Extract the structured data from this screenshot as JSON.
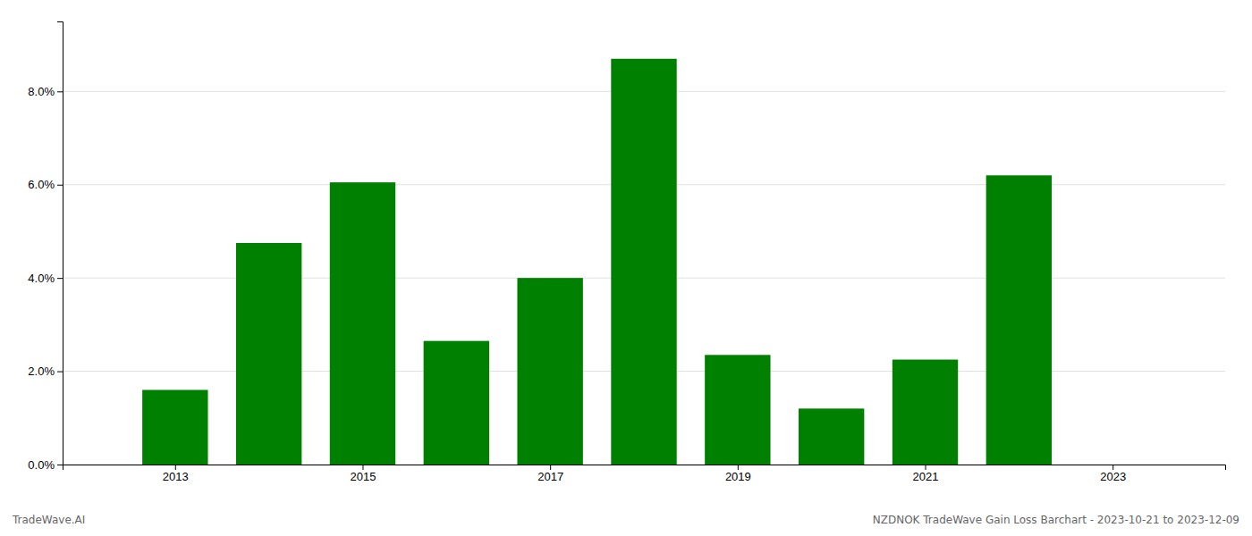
{
  "chart_data": {
    "type": "bar",
    "title": "NZDNOK TradeWave Gain Loss Barchart - 2023-10-21 to 2023-12-09",
    "annotations": [
      "TradeWave.AI"
    ],
    "x": [
      2013,
      2014,
      2015,
      2016,
      2017,
      2018,
      2019,
      2020,
      2021,
      2022
    ],
    "values": [
      0.016,
      0.0475,
      0.0605,
      0.0265,
      0.04,
      0.087,
      0.0235,
      0.012,
      0.0225,
      0.062
    ],
    "color": "#008000",
    "xlim": [
      2011.8,
      2024.2
    ],
    "xticks": [
      2013,
      2015,
      2017,
      2019,
      2021,
      2023
    ],
    "ylim": [
      0,
      0.095
    ],
    "yticks": [
      {
        "value": 0.0,
        "label": "0.0%"
      },
      {
        "value": 0.02,
        "label": "2.0%"
      },
      {
        "value": 0.04,
        "label": "4.0%"
      },
      {
        "value": 0.06,
        "label": "6.0%"
      },
      {
        "value": 0.08,
        "label": "8.0%"
      }
    ],
    "grid": true
  }
}
